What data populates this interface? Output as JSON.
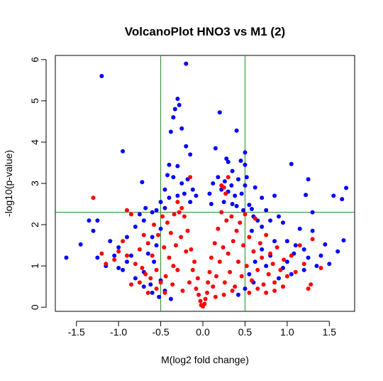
{
  "chart_data": {
    "type": "scatter",
    "title": "VolcanoPlot HNO3 vs M1 (2)",
    "xlabel": "M(log2 fold change)",
    "ylabel": "-log10(p-value)",
    "xlim": [
      -1.75,
      1.8
    ],
    "ylim": [
      -0.1,
      6.1
    ],
    "x_ticks": [
      "-1.5",
      "-1.0",
      "-0.5",
      "0.0",
      "0.5",
      "1.0",
      "1.5"
    ],
    "y_ticks": [
      "0",
      "1",
      "2",
      "3",
      "4",
      "5",
      "6"
    ],
    "grid": false,
    "legend": "none",
    "thresholds": {
      "fold_change_lines": [
        -0.5,
        0.5
      ],
      "pvalue_line": 2.3,
      "line_color": "#228B22"
    },
    "series": [
      {
        "color": "#0000FF",
        "points": [
          [
            -1.2,
            5.6
          ],
          [
            -0.2,
            5.9
          ],
          [
            0.2,
            4.72
          ],
          [
            0.4,
            4.28
          ],
          [
            -0.35,
            4.6
          ],
          [
            -0.33,
            4.8
          ],
          [
            -0.3,
            5.05
          ],
          [
            -0.28,
            4.9
          ],
          [
            -0.25,
            4.33
          ],
          [
            -0.95,
            3.78
          ],
          [
            -0.2,
            3.9
          ],
          [
            -0.38,
            4.25
          ],
          [
            -0.15,
            3.7
          ],
          [
            0.15,
            3.85
          ],
          [
            0.5,
            3.75
          ],
          [
            0.3,
            3.52
          ],
          [
            0.35,
            3.3
          ],
          [
            1.05,
            3.47
          ],
          [
            1.25,
            3.1
          ],
          [
            1.7,
            2.89
          ],
          [
            1.55,
            2.7
          ],
          [
            1.22,
            2.72
          ],
          [
            1.3,
            2.3
          ],
          [
            1.65,
            2.62
          ],
          [
            0.85,
            2.7
          ],
          [
            0.7,
            2.65
          ],
          [
            0.62,
            2.9
          ],
          [
            0.55,
            2.48
          ],
          [
            0.6,
            2.2
          ],
          [
            0.75,
            2.35
          ],
          [
            0.8,
            2.1
          ],
          [
            0.9,
            2.2
          ],
          [
            0.95,
            2.05
          ],
          [
            1.0,
            1.6
          ],
          [
            1.1,
            1.5
          ],
          [
            1.15,
            1.9
          ],
          [
            1.3,
            1.85
          ],
          [
            1.45,
            1.52
          ],
          [
            1.6,
            1.35
          ],
          [
            1.67,
            1.62
          ],
          [
            1.4,
            1.25
          ],
          [
            1.5,
            1.05
          ],
          [
            1.35,
            1.0
          ],
          [
            1.2,
            0.9
          ],
          [
            1.05,
            0.8
          ],
          [
            0.9,
            0.7
          ],
          [
            -1.62,
            1.2
          ],
          [
            -1.45,
            1.52
          ],
          [
            -1.35,
            2.1
          ],
          [
            -1.25,
            2.1
          ],
          [
            -1.3,
            1.85
          ],
          [
            -1.1,
            1.6
          ],
          [
            -1.0,
            1.45
          ],
          [
            -0.9,
            1.7
          ],
          [
            -0.8,
            1.95
          ],
          [
            -0.75,
            2.25
          ],
          [
            -0.68,
            2.4
          ],
          [
            -0.6,
            2.3
          ],
          [
            -0.7,
            2.1
          ],
          [
            -0.85,
            1.25
          ],
          [
            -1.15,
            1.0
          ],
          [
            -1.25,
            1.2
          ],
          [
            -0.95,
            0.9
          ],
          [
            -0.8,
            0.7
          ],
          [
            -0.7,
            0.5
          ],
          [
            -0.6,
            0.35
          ],
          [
            -0.52,
            0.25
          ],
          [
            -0.72,
            3.03
          ],
          [
            -0.45,
            2.85
          ],
          [
            -0.42,
            3.2
          ],
          [
            -0.4,
            3.45
          ],
          [
            -0.35,
            3.15
          ],
          [
            -0.3,
            3.42
          ],
          [
            -0.25,
            3.0
          ],
          [
            -0.22,
            2.75
          ],
          [
            -0.18,
            3.1
          ],
          [
            -0.12,
            2.85
          ],
          [
            -0.08,
            2.7
          ],
          [
            0.08,
            2.75
          ],
          [
            0.12,
            3.0
          ],
          [
            0.18,
            3.15
          ],
          [
            0.22,
            2.85
          ],
          [
            0.26,
            3.05
          ],
          [
            0.3,
            2.8
          ],
          [
            0.34,
            2.95
          ],
          [
            0.38,
            2.7
          ],
          [
            0.42,
            3.1
          ],
          [
            0.46,
            2.75
          ],
          [
            0.5,
            2.95
          ],
          [
            0.52,
            3.15
          ],
          [
            0.45,
            3.55
          ],
          [
            0.28,
            3.6
          ],
          [
            0.5,
            3.45
          ],
          [
            -0.5,
            2.55
          ],
          [
            -0.55,
            2.35
          ],
          [
            -0.45,
            2.4
          ],
          [
            -0.4,
            2.65
          ],
          [
            -0.3,
            2.7
          ],
          [
            -0.15,
            2.55
          ],
          [
            0.1,
            2.5
          ],
          [
            0.25,
            2.55
          ],
          [
            0.35,
            2.5
          ],
          [
            0.4,
            2.45
          ],
          [
            0.48,
            2.35
          ],
          [
            0.58,
            2.38
          ],
          [
            0.65,
            2.1
          ],
          [
            0.7,
            1.95
          ],
          [
            0.58,
            1.85
          ],
          [
            0.85,
            1.6
          ],
          [
            0.7,
            1.4
          ],
          [
            0.8,
            1.25
          ],
          [
            0.62,
            1.1
          ],
          [
            0.75,
            1.0
          ],
          [
            0.55,
            0.8
          ],
          [
            0.6,
            0.6
          ],
          [
            0.5,
            0.45
          ],
          [
            0.42,
            0.3
          ],
          [
            -0.5,
            1.9
          ],
          [
            -0.6,
            1.7
          ],
          [
            -0.55,
            1.5
          ],
          [
            -0.65,
            1.3
          ],
          [
            -0.58,
            1.1
          ],
          [
            -0.7,
            0.85
          ],
          [
            -0.5,
            0.65
          ],
          [
            -0.62,
            0.55
          ],
          [
            -0.45,
            0.4
          ],
          [
            -0.38,
            0.2
          ],
          [
            -0.9,
            1.1
          ],
          [
            -1.05,
            1.25
          ],
          [
            -1.0,
            0.95
          ],
          [
            1.0,
            1.1
          ],
          [
            1.08,
            1.3
          ],
          [
            0.95,
            0.95
          ],
          [
            1.2,
            1.4
          ],
          [
            1.25,
            1.2
          ]
        ]
      },
      {
        "color": "#FF0000",
        "points": [
          [
            -1.3,
            2.65
          ],
          [
            -1.2,
            1.3
          ],
          [
            -1.15,
            1.05
          ],
          [
            -1.05,
            1.15
          ],
          [
            -1.0,
            1.35
          ],
          [
            -0.95,
            1.6
          ],
          [
            -0.9,
            2.35
          ],
          [
            -0.85,
            2.25
          ],
          [
            -0.9,
            1.25
          ],
          [
            -0.8,
            1.05
          ],
          [
            -0.75,
            1.4
          ],
          [
            -0.72,
            0.95
          ],
          [
            -0.7,
            1.75
          ],
          [
            -0.68,
            0.8
          ],
          [
            -0.65,
            1.55
          ],
          [
            -0.62,
            0.7
          ],
          [
            -0.6,
            1.25
          ],
          [
            -0.58,
            2.0
          ],
          [
            -0.55,
            0.9
          ],
          [
            -0.53,
            1.75
          ],
          [
            -0.5,
            0.6
          ],
          [
            -0.48,
            2.2
          ],
          [
            -0.46,
            1.45
          ],
          [
            -0.44,
            0.75
          ],
          [
            -0.42,
            2.05
          ],
          [
            -0.4,
            1.2
          ],
          [
            -0.38,
            1.8
          ],
          [
            -0.36,
            0.55
          ],
          [
            -0.34,
            2.25
          ],
          [
            -0.32,
            1.5
          ],
          [
            -0.3,
            0.9
          ],
          [
            -0.28,
            2.3
          ],
          [
            -0.26,
            1.7
          ],
          [
            -0.24,
            0.4
          ],
          [
            -0.22,
            2.2
          ],
          [
            -0.2,
            1.35
          ],
          [
            -0.18,
            1.85
          ],
          [
            -0.16,
            0.6
          ],
          [
            -0.14,
            1.4
          ],
          [
            -0.12,
            0.9
          ],
          [
            -0.1,
            1.1
          ],
          [
            -0.08,
            0.45
          ],
          [
            -0.06,
            0.7
          ],
          [
            -0.05,
            0.3
          ],
          [
            -0.03,
            0.15
          ],
          [
            -0.02,
            0.05
          ],
          [
            0.0,
            0.02
          ],
          [
            0.02,
            0.08
          ],
          [
            0.03,
            0.2
          ],
          [
            0.05,
            0.35
          ],
          [
            0.06,
            0.6
          ],
          [
            0.08,
            0.85
          ],
          [
            0.1,
            1.2
          ],
          [
            0.12,
            0.5
          ],
          [
            0.14,
            1.55
          ],
          [
            0.16,
            0.75
          ],
          [
            0.18,
            1.9
          ],
          [
            0.2,
            1.1
          ],
          [
            0.22,
            2.3
          ],
          [
            0.24,
            1.45
          ],
          [
            0.26,
            0.6
          ],
          [
            0.28,
            2.1
          ],
          [
            0.3,
            1.3
          ],
          [
            0.32,
            0.85
          ],
          [
            0.34,
            2.2
          ],
          [
            0.36,
            1.6
          ],
          [
            0.38,
            0.5
          ],
          [
            0.4,
            1.85
          ],
          [
            0.42,
            1.1
          ],
          [
            0.44,
            2.05
          ],
          [
            0.46,
            0.75
          ],
          [
            0.48,
            1.5
          ],
          [
            0.5,
            2.25
          ],
          [
            0.52,
            1.0
          ],
          [
            0.55,
            1.7
          ],
          [
            0.58,
            0.65
          ],
          [
            0.6,
            1.35
          ],
          [
            0.62,
            2.15
          ],
          [
            0.65,
            0.9
          ],
          [
            0.68,
            1.55
          ],
          [
            0.7,
            1.2
          ],
          [
            0.72,
            0.55
          ],
          [
            0.75,
            1.75
          ],
          [
            0.78,
            0.8
          ],
          [
            0.8,
            1.3
          ],
          [
            0.83,
            1.05
          ],
          [
            0.85,
            0.6
          ],
          [
            0.88,
            1.45
          ],
          [
            0.92,
            0.9
          ],
          [
            0.96,
            1.15
          ],
          [
            1.0,
            0.75
          ],
          [
            1.05,
            1.25
          ],
          [
            1.1,
            0.85
          ],
          [
            1.15,
            1.5
          ],
          [
            1.2,
            1.05
          ],
          [
            1.28,
            0.55
          ],
          [
            1.3,
            1.65
          ],
          [
            1.4,
            0.95
          ],
          [
            1.25,
            0.45
          ],
          [
            -0.15,
            3.15
          ],
          [
            0.3,
            3.15
          ],
          [
            0.25,
            2.9
          ],
          [
            0.22,
            2.95
          ],
          [
            0.27,
            2.75
          ],
          [
            -0.25,
            2.4
          ],
          [
            -0.3,
            2.55
          ],
          [
            -0.35,
            1.0
          ],
          [
            -0.45,
            0.35
          ],
          [
            -0.55,
            0.45
          ],
          [
            -0.65,
            0.35
          ],
          [
            -0.75,
            0.6
          ],
          [
            -0.85,
            0.55
          ],
          [
            0.15,
            0.25
          ],
          [
            0.25,
            0.3
          ],
          [
            0.35,
            0.4
          ],
          [
            0.55,
            0.35
          ],
          [
            0.65,
            0.45
          ],
          [
            0.75,
            0.35
          ],
          [
            0.85,
            0.4
          ],
          [
            0.95,
            0.5
          ]
        ]
      }
    ]
  }
}
